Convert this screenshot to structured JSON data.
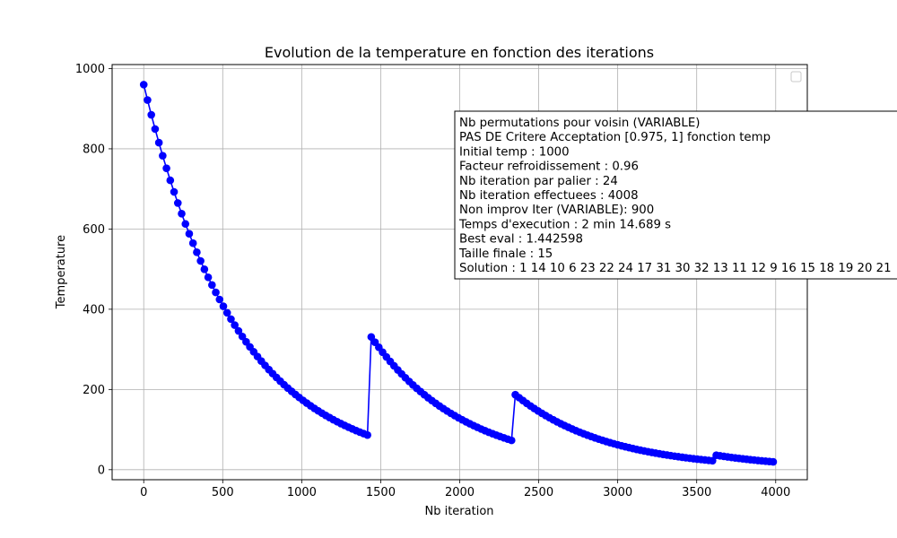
{
  "chart_data": {
    "type": "line",
    "title": "Evolution de la temperature en fonction des iterations",
    "xlabel": "Nb iteration",
    "ylabel": "Temperature",
    "xlim": [
      -200,
      4200
    ],
    "ylim": [
      -25,
      1010
    ],
    "xticks": [
      0,
      500,
      1000,
      1500,
      2000,
      2500,
      3000,
      3500,
      4000
    ],
    "yticks": [
      0,
      200,
      400,
      600,
      800,
      1000
    ],
    "grid": true,
    "legend": {
      "placement": "top-right",
      "entries": []
    },
    "series": [
      {
        "color": "#0000ff",
        "marker": "circle",
        "step": 24,
        "segments": [
          {
            "x_start": 0,
            "x_end": 1416,
            "y_start": 960,
            "factor": 0.96
          },
          {
            "x_start": 1440,
            "x_end": 2328,
            "y_start": 331,
            "factor": 0.96
          },
          {
            "x_start": 2352,
            "x_end": 3600,
            "y_start": 187,
            "factor": 0.96
          },
          {
            "x_start": 3624,
            "x_end": 3984,
            "y_start": 36,
            "factor": 0.96
          }
        ]
      }
    ],
    "annotation": {
      "lines": [
        "Nb permutations pour voisin (VARIABLE)",
        "PAS DE Critere Acceptation [0.975, 1] fonction temp",
        "Initial temp : 1000",
        "Facteur refroidissement : 0.96",
        "Nb iteration par palier : 24",
        "Nb iteration effectuees : 4008",
        "Non improv Iter (VARIABLE): 900",
        "Temps d'execution : 2 min 14.689 s",
        "Best eval : 1.442598",
        "Taille finale : 15",
        "Solution : 1 14 10 6 23 22 24 17 31 30 32 13 11 12 9 16 15 18 19 20 21"
      ]
    }
  }
}
